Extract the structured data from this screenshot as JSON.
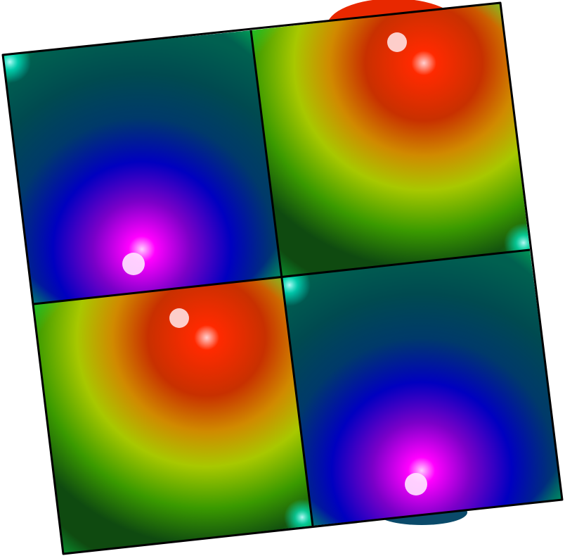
{
  "scene": {
    "kind": "3d-surface-render",
    "colormap": [
      "#00ff40",
      "#00e5ff",
      "#0000ff",
      "#ff00ff",
      "#ff0000",
      "#ffff00"
    ],
    "background": "#ffffff",
    "frame_color": "#000000",
    "panels": [
      {
        "name": "panel-top-left",
        "lobe": "negative",
        "base": "#004040"
      },
      {
        "name": "panel-top-right",
        "lobe": "positive",
        "base": "#1a5a00"
      },
      {
        "name": "panel-bottom-left",
        "lobe": "positive",
        "base": "#1a5a00"
      },
      {
        "name": "panel-bottom-right",
        "lobe": "negative",
        "base": "#004040"
      }
    ]
  }
}
